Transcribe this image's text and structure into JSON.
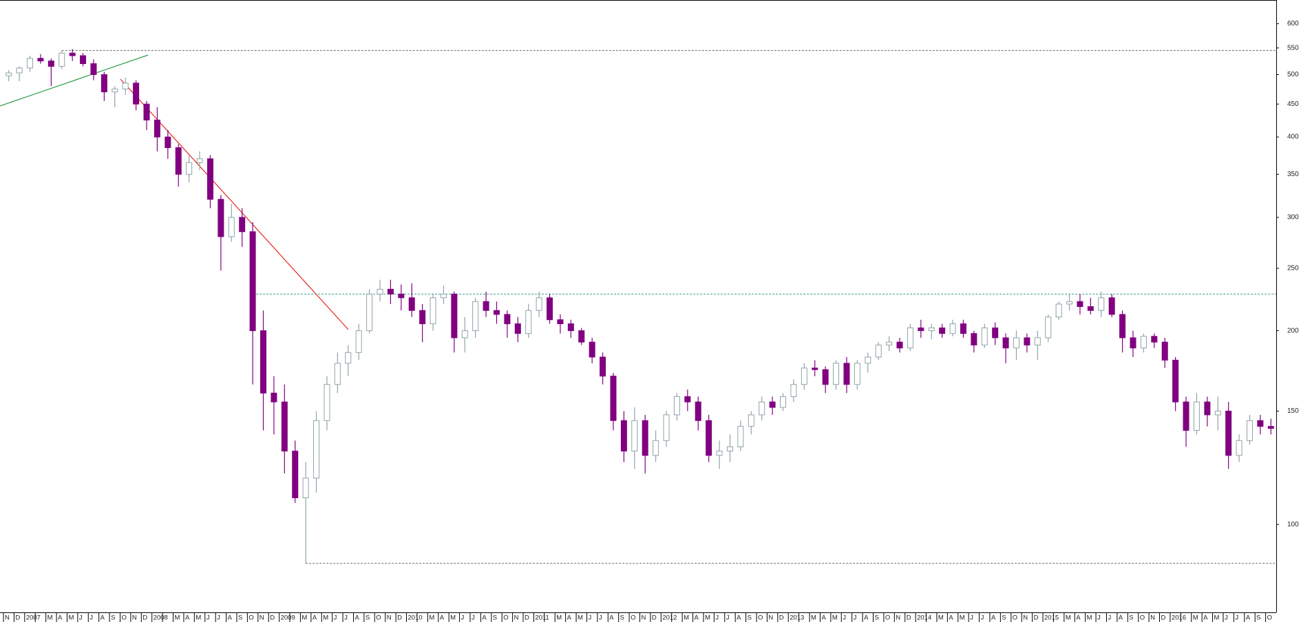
{
  "chart_data": {
    "type": "candlestick",
    "y_scale": "log",
    "ylim": [
      73,
      653
    ],
    "yticks": [
      100,
      150,
      200,
      250,
      300,
      350,
      400,
      450,
      500,
      550,
      600
    ],
    "up_color": "#8fa3a8",
    "down_color": "#800080",
    "hlines": [
      {
        "value": 545,
        "color": "#666666"
      },
      {
        "value": 228,
        "color": "#3a9a8a"
      },
      {
        "value": 87,
        "color": "#666666"
      }
    ],
    "categories": [
      "N",
      "D",
      "2007",
      null,
      "M",
      "A",
      "M",
      "J",
      "J",
      "A",
      "S",
      "O",
      "N",
      "D",
      "2008",
      null,
      "M",
      "A",
      "M",
      "J",
      "J",
      "A",
      "S",
      "O",
      "N",
      "D",
      "2009",
      null,
      "M",
      "A",
      "M",
      "J",
      "J",
      "A",
      "S",
      "O",
      "N",
      "D",
      "2010",
      null,
      "M",
      "A",
      "M",
      "J",
      "J",
      "A",
      "S",
      "O",
      "N",
      "D",
      "2011",
      null,
      "M",
      "A",
      "M",
      "J",
      "J",
      "A",
      "S",
      "O",
      "N",
      "D",
      "2012",
      null,
      "M",
      "A",
      "M",
      "J",
      "J",
      "A",
      "S",
      "O",
      "N",
      "D",
      "2013",
      null,
      "M",
      "A",
      "M",
      "J",
      "J",
      "A",
      "S",
      "O",
      "N",
      "D",
      "2014",
      null,
      "M",
      "A",
      "M",
      "J",
      "J",
      "A",
      "S",
      "O",
      "N",
      "D",
      "2015",
      null,
      "M",
      "A",
      "M",
      "J",
      "J",
      "A",
      "S",
      "O",
      "N",
      "D",
      "2016",
      null,
      "M",
      "A",
      "M",
      "J",
      "J",
      "A",
      "S",
      "O"
    ],
    "open": [
      498,
      503,
      512,
      530,
      525,
      515,
      540,
      535,
      520,
      500,
      470,
      475,
      485,
      450,
      425,
      400,
      385,
      350,
      365,
      370,
      320,
      280,
      300,
      285,
      200,
      160,
      155,
      130,
      110,
      118,
      145,
      165,
      178,
      185,
      200,
      228,
      232,
      228,
      225,
      215,
      205,
      225,
      228,
      195,
      200,
      222,
      215,
      212,
      205,
      198,
      215,
      225,
      208,
      205,
      200,
      192,
      182,
      170,
      145,
      130,
      145,
      128,
      135,
      148,
      158,
      155,
      145,
      128,
      130,
      132,
      142,
      148,
      155,
      152,
      158,
      165,
      175,
      174,
      165,
      178,
      165,
      178,
      182,
      190,
      192,
      188,
      202,
      200,
      202,
      198,
      205,
      198,
      190,
      202,
      195,
      188,
      195,
      190,
      195,
      210,
      220,
      222,
      218,
      215,
      225,
      212,
      195,
      188,
      196,
      192,
      180,
      155,
      140,
      155,
      148,
      150,
      128,
      135,
      145,
      142
    ],
    "high": [
      508,
      515,
      535,
      538,
      530,
      545,
      548,
      540,
      528,
      505,
      480,
      495,
      490,
      455,
      445,
      410,
      390,
      375,
      380,
      375,
      325,
      315,
      310,
      295,
      215,
      170,
      165,
      135,
      125,
      150,
      170,
      185,
      190,
      205,
      232,
      240,
      240,
      236,
      237,
      220,
      228,
      235,
      230,
      210,
      225,
      230,
      222,
      215,
      210,
      220,
      230,
      228,
      212,
      208,
      202,
      195,
      185,
      172,
      150,
      152,
      148,
      140,
      150,
      160,
      162,
      158,
      148,
      135,
      138,
      145,
      150,
      158,
      158,
      160,
      168,
      178,
      180,
      176,
      180,
      182,
      180,
      185,
      192,
      196,
      195,
      205,
      208,
      205,
      205,
      208,
      208,
      200,
      205,
      206,
      198,
      200,
      198,
      200,
      212,
      222,
      228,
      228,
      225,
      230,
      228,
      215,
      200,
      198,
      198,
      195,
      182,
      158,
      160,
      158,
      158,
      155,
      138,
      148,
      148,
      146
    ],
    "low": [
      488,
      488,
      505,
      520,
      480,
      510,
      525,
      515,
      490,
      455,
      445,
      465,
      440,
      410,
      380,
      370,
      335,
      340,
      355,
      310,
      248,
      275,
      270,
      165,
      140,
      138,
      120,
      108,
      87,
      112,
      140,
      160,
      170,
      180,
      198,
      222,
      220,
      215,
      210,
      192,
      200,
      220,
      185,
      185,
      195,
      210,
      205,
      195,
      192,
      195,
      210,
      205,
      198,
      195,
      190,
      178,
      165,
      140,
      125,
      122,
      120,
      125,
      132,
      145,
      150,
      140,
      125,
      122,
      125,
      130,
      138,
      145,
      148,
      150,
      155,
      162,
      170,
      160,
      162,
      160,
      162,
      172,
      180,
      186,
      185,
      186,
      195,
      194,
      195,
      196,
      195,
      185,
      188,
      190,
      178,
      180,
      185,
      180,
      192,
      208,
      215,
      212,
      212,
      210,
      210,
      185,
      182,
      185,
      188,
      175,
      150,
      132,
      138,
      142,
      140,
      122,
      125,
      133,
      138,
      138
    ],
    "close": [
      503,
      512,
      530,
      525,
      515,
      540,
      535,
      520,
      500,
      470,
      475,
      485,
      450,
      425,
      400,
      385,
      350,
      365,
      370,
      320,
      280,
      300,
      285,
      200,
      160,
      155,
      130,
      110,
      118,
      145,
      165,
      178,
      185,
      200,
      228,
      232,
      228,
      225,
      215,
      205,
      225,
      228,
      195,
      200,
      222,
      215,
      212,
      205,
      198,
      215,
      225,
      208,
      205,
      200,
      192,
      182,
      170,
      145,
      130,
      145,
      128,
      135,
      148,
      158,
      155,
      145,
      128,
      130,
      132,
      142,
      148,
      155,
      152,
      158,
      165,
      175,
      174,
      165,
      178,
      165,
      178,
      182,
      190,
      192,
      188,
      202,
      200,
      202,
      198,
      205,
      198,
      190,
      202,
      195,
      188,
      195,
      190,
      195,
      210,
      220,
      222,
      218,
      215,
      225,
      212,
      195,
      188,
      196,
      192,
      180,
      155,
      140,
      155,
      148,
      150,
      128,
      135,
      145,
      142,
      141
    ]
  }
}
